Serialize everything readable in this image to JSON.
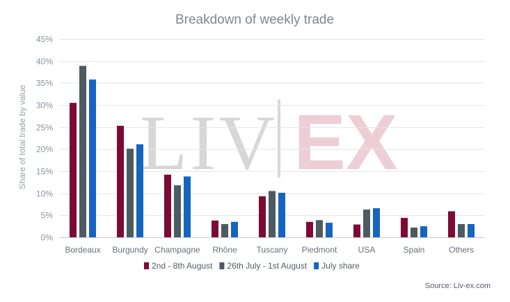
{
  "chart_data": {
    "type": "bar",
    "title": "Breakdown of weekly trade",
    "ylabel": "Share of total trade by value",
    "xlabel": "",
    "ylim": [
      0,
      45
    ],
    "yticks": [
      0,
      5,
      10,
      15,
      20,
      25,
      30,
      35,
      40,
      45
    ],
    "ytick_labels": [
      "0%",
      "5%",
      "10%",
      "15%",
      "20%",
      "25%",
      "30%",
      "35%",
      "40%",
      "45%"
    ],
    "grid": true,
    "legend_position": "bottom",
    "categories": [
      "Bordeaux",
      "Burgundy",
      "Champagne",
      "Rhône",
      "Tuscany",
      "Piedmont",
      "USA",
      "Spain",
      "Others"
    ],
    "series": [
      {
        "name": "2nd - 8th August",
        "color": "#7d0a35",
        "values": [
          30.5,
          25.3,
          14.2,
          3.8,
          9.3,
          3.5,
          2.9,
          4.4,
          5.9
        ]
      },
      {
        "name": "26th July - 1st August",
        "color": "#4e5a62",
        "values": [
          38.9,
          20.1,
          11.8,
          3.0,
          10.5,
          3.9,
          6.3,
          2.2,
          3.0
        ]
      },
      {
        "name": "July share",
        "color": "#1565c0",
        "values": [
          35.8,
          21.1,
          13.8,
          3.5,
          10.1,
          3.3,
          6.6,
          2.5,
          3.0
        ]
      }
    ],
    "source": "Source: Liv-ex.com",
    "watermark": "LIV-EX"
  }
}
